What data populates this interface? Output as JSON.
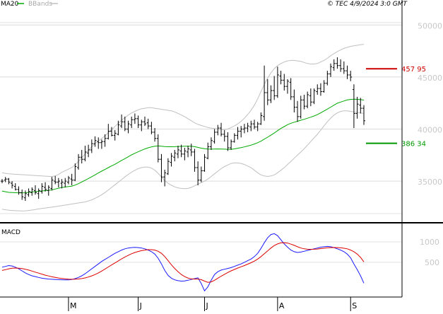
{
  "chart_data": [
    {
      "type": "ohlc",
      "indicators": [
        "MA20",
        "BBands"
      ],
      "timestamp": "© TEC 4/9/2024 3:0 GMT",
      "y_ticks": [
        {
          "value": 50000,
          "label": "50000"
        },
        {
          "value": 45000,
          "label": "45000"
        },
        {
          "value": 40000,
          "label": "40000"
        },
        {
          "value": 35000,
          "label": "35000"
        }
      ],
      "ylim": [
        31000,
        52400
      ],
      "x_ticks": [
        {
          "index": 20,
          "label": "M"
        },
        {
          "index": 41,
          "label": "J"
        },
        {
          "index": 61,
          "label": "J"
        },
        {
          "index": 83,
          "label": "A"
        },
        {
          "index": 105,
          "label": "S"
        }
      ],
      "levels": [
        {
          "name": "resistance",
          "value": 45795,
          "label": "457 95",
          "color": "#cc0000"
        },
        {
          "name": "support",
          "value": 38634,
          "label": "386 34",
          "color": "#009900"
        }
      ],
      "ohlc": [
        [
          35000,
          35200,
          34800,
          35000
        ],
        [
          35100,
          35400,
          34900,
          35200
        ],
        [
          35200,
          35300,
          34700,
          34900
        ],
        [
          34800,
          35000,
          34300,
          34600
        ],
        [
          34500,
          34800,
          34100,
          34200
        ],
        [
          34200,
          34500,
          33700,
          33900
        ],
        [
          33900,
          34200,
          33200,
          33500
        ],
        [
          33400,
          34100,
          33100,
          33800
        ],
        [
          33700,
          34300,
          33500,
          34000
        ],
        [
          33900,
          34400,
          33600,
          34200
        ],
        [
          34100,
          34600,
          33700,
          33900
        ],
        [
          33800,
          34300,
          33300,
          34100
        ],
        [
          34000,
          34800,
          33800,
          34500
        ],
        [
          34400,
          34900,
          34000,
          34200
        ],
        [
          34100,
          34600,
          33600,
          34400
        ],
        [
          34300,
          35400,
          34100,
          35100
        ],
        [
          35000,
          35500,
          34700,
          34900
        ],
        [
          34900,
          35300,
          34400,
          35000
        ],
        [
          34800,
          35200,
          34300,
          34900
        ],
        [
          34800,
          35300,
          34400,
          35000
        ],
        [
          34900,
          35500,
          34700,
          35300
        ],
        [
          35200,
          35700,
          34600,
          35100
        ],
        [
          35100,
          36700,
          35000,
          36400
        ],
        [
          36300,
          37600,
          36100,
          37300
        ],
        [
          37300,
          38000,
          36700,
          37100
        ],
        [
          37100,
          38400,
          36900,
          37800
        ],
        [
          37700,
          38500,
          37300,
          38000
        ],
        [
          38000,
          39000,
          37700,
          38600
        ],
        [
          38600,
          39300,
          38300,
          38900
        ],
        [
          38800,
          39200,
          38100,
          38700
        ],
        [
          38700,
          39000,
          38100,
          38800
        ],
        [
          38800,
          39500,
          38300,
          39100
        ],
        [
          39100,
          40500,
          39000,
          39800
        ],
        [
          39800,
          40200,
          39300,
          39400
        ],
        [
          39400,
          39900,
          38900,
          39600
        ],
        [
          39500,
          40800,
          39400,
          40400
        ],
        [
          40300,
          41400,
          40100,
          40700
        ],
        [
          40700,
          41200,
          39800,
          40000
        ],
        [
          40000,
          40800,
          39600,
          40500
        ],
        [
          40400,
          41200,
          40100,
          40900
        ],
        [
          40900,
          41500,
          40500,
          41000
        ],
        [
          41000,
          41300,
          40100,
          40400
        ],
        [
          40400,
          40900,
          39800,
          40700
        ],
        [
          40700,
          41200,
          40300,
          40500
        ],
        [
          40600,
          41000,
          40000,
          40300
        ],
        [
          40300,
          40700,
          39500,
          39700
        ],
        [
          39700,
          40100,
          38800,
          39100
        ],
        [
          39100,
          39500,
          36800,
          37100
        ],
        [
          37100,
          37600,
          34900,
          35400
        ],
        [
          35400,
          36100,
          34500,
          35800
        ],
        [
          35700,
          37200,
          35600,
          36900
        ],
        [
          36800,
          37700,
          36400,
          37400
        ],
        [
          37300,
          38000,
          36900,
          37700
        ],
        [
          37600,
          38400,
          37200,
          38000
        ],
        [
          37900,
          38500,
          37300,
          37600
        ],
        [
          37600,
          38200,
          37000,
          37900
        ],
        [
          37800,
          38400,
          37300,
          38100
        ],
        [
          38000,
          38600,
          37400,
          37800
        ],
        [
          37800,
          38100,
          35900,
          36300
        ],
        [
          36300,
          36900,
          34600,
          35100
        ],
        [
          35100,
          36400,
          34900,
          36000
        ],
        [
          36000,
          37600,
          35900,
          37300
        ],
        [
          37200,
          38700,
          37100,
          38300
        ],
        [
          38300,
          39200,
          38000,
          38900
        ],
        [
          38800,
          40000,
          38600,
          39700
        ],
        [
          39700,
          40400,
          39400,
          40100
        ],
        [
          40100,
          40600,
          39300,
          39500
        ],
        [
          39500,
          39900,
          38800,
          39300
        ],
        [
          39300,
          39700,
          37900,
          38200
        ],
        [
          38200,
          39000,
          38000,
          38800
        ],
        [
          38800,
          39600,
          38700,
          39400
        ],
        [
          39400,
          40200,
          39000,
          39800
        ],
        [
          39800,
          40300,
          39200,
          40000
        ],
        [
          40000,
          40500,
          39600,
          40100
        ],
        [
          40100,
          40600,
          39700,
          40300
        ],
        [
          40200,
          40800,
          39800,
          40500
        ],
        [
          40500,
          40900,
          40000,
          40200
        ],
        [
          40200,
          40700,
          39800,
          40500
        ],
        [
          40500,
          41600,
          40400,
          41300
        ],
        [
          41200,
          46100,
          40800,
          43500
        ],
        [
          43500,
          44800,
          42300,
          42800
        ],
        [
          42800,
          44200,
          42500,
          43700
        ],
        [
          43700,
          45100,
          42800,
          43200
        ],
        [
          43200,
          46000,
          43000,
          45200
        ],
        [
          45100,
          45600,
          44300,
          44700
        ],
        [
          44700,
          45300,
          43700,
          44100
        ],
        [
          44100,
          44800,
          43400,
          44600
        ],
        [
          44500,
          44900,
          42800,
          43100
        ],
        [
          43100,
          43800,
          41600,
          42100
        ],
        [
          42100,
          42700,
          40700,
          41200
        ],
        [
          41200,
          43200,
          41000,
          42800
        ],
        [
          42800,
          43300,
          41900,
          42200
        ],
        [
          42200,
          43600,
          42000,
          43300
        ],
        [
          43200,
          43900,
          42200,
          42600
        ],
        [
          42600,
          43900,
          42400,
          43700
        ],
        [
          43600,
          44300,
          43300,
          43900
        ],
        [
          43900,
          44400,
          43200,
          43600
        ],
        [
          43600,
          44700,
          43500,
          44400
        ],
        [
          44400,
          45600,
          44200,
          45300
        ],
        [
          45300,
          46300,
          45000,
          46000
        ],
        [
          45900,
          46700,
          45600,
          46300
        ],
        [
          46300,
          46900,
          45800,
          46100
        ],
        [
          46100,
          46700,
          45500,
          45800
        ],
        [
          45800,
          46500,
          45300,
          45600
        ],
        [
          45600,
          46100,
          44800,
          45200
        ],
        [
          45200,
          45600,
          44600,
          45000
        ],
        [
          43800,
          44300,
          40100,
          41500
        ],
        [
          41500,
          43100,
          41000,
          42400
        ],
        [
          42300,
          43000,
          41500,
          42000
        ],
        [
          42000,
          42300,
          40400,
          40800
        ]
      ],
      "ma20": [
        34050,
        33980,
        33920,
        33900,
        33890,
        33880,
        33870,
        33880,
        33920,
        33960,
        33990,
        34020,
        34060,
        34090,
        34120,
        34160,
        34240,
        34320,
        34390,
        34440,
        34480,
        34520,
        34620,
        34760,
        34920,
        35080,
        35250,
        35420,
        35600,
        35780,
        35960,
        36120,
        36300,
        36460,
        36620,
        36800,
        36990,
        37160,
        37340,
        37520,
        37680,
        37820,
        37960,
        38090,
        38200,
        38290,
        38360,
        38380,
        38350,
        38320,
        38300,
        38300,
        38310,
        38330,
        38340,
        38350,
        38360,
        38350,
        38310,
        38240,
        38170,
        38110,
        38080,
        38070,
        38080,
        38090,
        38080,
        38070,
        38050,
        38060,
        38100,
        38160,
        38220,
        38290,
        38370,
        38460,
        38570,
        38690,
        38840,
        39040,
        39220,
        39420,
        39620,
        39850,
        40060,
        40240,
        40420,
        40560,
        40660,
        40750,
        40850,
        40940,
        41040,
        41140,
        41260,
        41390,
        41560,
        41740,
        41920,
        42110,
        42300,
        42480,
        42600,
        42700,
        42800,
        42850,
        42870,
        42860,
        42830,
        42790
      ],
      "bb_upper": [
        35800,
        35750,
        35700,
        35680,
        35660,
        35640,
        35620,
        35600,
        35580,
        35560,
        35540,
        35520,
        35500,
        35480,
        35460,
        35440,
        35500,
        35650,
        35850,
        36000,
        36150,
        36300,
        36550,
        36900,
        37250,
        37600,
        37950,
        38300,
        38600,
        38850,
        39100,
        39350,
        39650,
        39950,
        40250,
        40550,
        40850,
        41100,
        41350,
        41550,
        41700,
        41850,
        41950,
        42000,
        42050,
        42050,
        42000,
        41950,
        41900,
        41850,
        41800,
        41750,
        41650,
        41500,
        41350,
        41200,
        41000,
        40800,
        40600,
        40450,
        40350,
        40250,
        40150,
        40100,
        40050,
        40000,
        39950,
        39950,
        40000,
        40150,
        40300,
        40500,
        40750,
        41050,
        41400,
        41800,
        42300,
        42900,
        43600,
        44300,
        44900,
        45400,
        45800,
        46100,
        46300,
        46450,
        46550,
        46600,
        46600,
        46550,
        46500,
        46400,
        46300,
        46250,
        46250,
        46300,
        46450,
        46600,
        46800,
        47050,
        47250,
        47450,
        47600,
        47750,
        47850,
        47950,
        48000,
        48050,
        48100,
        48150
      ],
      "bb_lower": [
        32300,
        32250,
        32200,
        32180,
        32160,
        32150,
        32140,
        32150,
        32180,
        32220,
        32280,
        32330,
        32380,
        32420,
        32460,
        32500,
        32550,
        32600,
        32650,
        32700,
        32750,
        32800,
        32850,
        32900,
        32950,
        33000,
        33100,
        33200,
        33350,
        33500,
        33700,
        33900,
        34150,
        34400,
        34650,
        34900,
        35150,
        35400,
        35650,
        35850,
        36050,
        36200,
        36300,
        36350,
        36350,
        36250,
        36050,
        35750,
        35400,
        35050,
        34800,
        34600,
        34450,
        34350,
        34300,
        34280,
        34300,
        34400,
        34550,
        34700,
        34850,
        35000,
        35200,
        35450,
        35700,
        35950,
        36200,
        36400,
        36550,
        36700,
        36750,
        36750,
        36700,
        36600,
        36450,
        36300,
        36050,
        35800,
        35600,
        35500,
        35450,
        35500,
        35600,
        35800,
        36050,
        36300,
        36600,
        36900,
        37200,
        37500,
        37800,
        38100,
        38450,
        38800,
        39150,
        39500,
        39900,
        40300,
        40700,
        41050,
        41350,
        41550,
        41700,
        41750,
        41750,
        41700,
        41650,
        41600,
        41550,
        41500
      ],
      "macd": {
        "label": "MACD",
        "y_ticks": [
          {
            "value": 1000,
            "label": "1000"
          },
          {
            "value": 500,
            "label": "500"
          }
        ],
        "ylim": [
          -350,
          1450
        ],
        "macd_line": [
          380,
          400,
          420,
          410,
          380,
          340,
          290,
          240,
          200,
          170,
          150,
          130,
          110,
          100,
          90,
          85,
          80,
          75,
          72,
          70,
          70,
          80,
          100,
          130,
          170,
          220,
          280,
          340,
          400,
          460,
          520,
          570,
          620,
          670,
          720,
          760,
          800,
          830,
          850,
          860,
          865,
          860,
          850,
          830,
          800,
          760,
          700,
          600,
          460,
          300,
          180,
          110,
          70,
          50,
          40,
          45,
          60,
          80,
          100,
          120,
          -20,
          -200,
          -100,
          60,
          200,
          270,
          310,
          330,
          350,
          370,
          400,
          430,
          460,
          500,
          540,
          580,
          640,
          720,
          840,
          980,
          1100,
          1180,
          1200,
          1150,
          1050,
          950,
          870,
          800,
          760,
          740,
          750,
          770,
          790,
          810,
          830,
          850,
          870,
          880,
          890,
          880,
          860,
          830,
          800,
          760,
          700,
          610,
          460,
          320,
          170,
          -10
        ],
        "signal_line": [
          300,
          320,
          340,
          355,
          360,
          355,
          345,
          330,
          310,
          285,
          260,
          235,
          210,
          185,
          165,
          145,
          130,
          115,
          105,
          95,
          88,
          85,
          86,
          92,
          102,
          118,
          140,
          168,
          200,
          240,
          285,
          335,
          385,
          435,
          485,
          535,
          585,
          630,
          670,
          710,
          740,
          765,
          785,
          800,
          810,
          810,
          800,
          770,
          720,
          640,
          540,
          440,
          350,
          270,
          200,
          150,
          115,
          95,
          90,
          90,
          75,
          40,
          10,
          20,
          60,
          110,
          160,
          205,
          250,
          290,
          325,
          360,
          390,
          420,
          455,
          490,
          530,
          580,
          640,
          710,
          780,
          850,
          910,
          950,
          975,
          980,
          970,
          945,
          915,
          880,
          850,
          830,
          820,
          818,
          820,
          825,
          835,
          845,
          855,
          860,
          862,
          860,
          855,
          845,
          830,
          800,
          760,
          700,
          620,
          510
        ]
      }
    }
  ]
}
